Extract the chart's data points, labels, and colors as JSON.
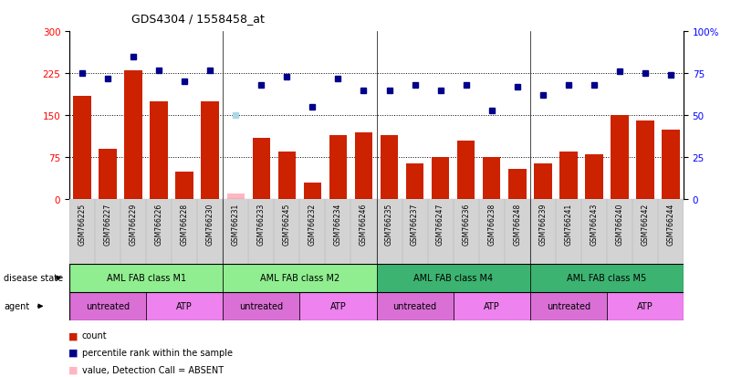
{
  "title": "GDS4304 / 1558458_at",
  "samples": [
    "GSM766225",
    "GSM766227",
    "GSM766229",
    "GSM766226",
    "GSM766228",
    "GSM766230",
    "GSM766231",
    "GSM766233",
    "GSM766245",
    "GSM766232",
    "GSM766234",
    "GSM766246",
    "GSM766235",
    "GSM766237",
    "GSM766247",
    "GSM766236",
    "GSM766238",
    "GSM766248",
    "GSM766239",
    "GSM766241",
    "GSM766243",
    "GSM766240",
    "GSM766242",
    "GSM766244"
  ],
  "count_values": [
    185,
    90,
    230,
    175,
    50,
    175,
    10,
    110,
    85,
    30,
    115,
    120,
    115,
    65,
    75,
    105,
    75,
    55,
    65,
    85,
    80,
    150,
    140,
    125
  ],
  "count_absent": [
    false,
    false,
    false,
    false,
    false,
    false,
    true,
    false,
    false,
    false,
    false,
    false,
    false,
    false,
    false,
    false,
    false,
    false,
    false,
    false,
    false,
    false,
    false,
    false
  ],
  "rank_values": [
    75,
    72,
    85,
    77,
    70,
    77,
    50,
    68,
    73,
    55,
    72,
    65,
    65,
    68,
    65,
    68,
    53,
    67,
    62,
    68,
    68,
    76,
    75,
    74
  ],
  "rank_absent": [
    false,
    false,
    false,
    false,
    false,
    false,
    true,
    false,
    false,
    false,
    false,
    false,
    false,
    false,
    false,
    false,
    false,
    false,
    false,
    false,
    false,
    false,
    false,
    false
  ],
  "disease_state_groups": [
    {
      "label": "AML FAB class M1",
      "start": 0,
      "end": 6,
      "color": "#90EE90"
    },
    {
      "label": "AML FAB class M2",
      "start": 6,
      "end": 12,
      "color": "#90EE90"
    },
    {
      "label": "AML FAB class M4",
      "start": 12,
      "end": 18,
      "color": "#3CB371"
    },
    {
      "label": "AML FAB class M5",
      "start": 18,
      "end": 24,
      "color": "#3CB371"
    }
  ],
  "agent_groups": [
    {
      "label": "untreated",
      "start": 0,
      "end": 3,
      "color": "#DA70D6"
    },
    {
      "label": "ATP",
      "start": 3,
      "end": 6,
      "color": "#EE82EE"
    },
    {
      "label": "untreated",
      "start": 6,
      "end": 9,
      "color": "#DA70D6"
    },
    {
      "label": "ATP",
      "start": 9,
      "end": 12,
      "color": "#EE82EE"
    },
    {
      "label": "untreated",
      "start": 12,
      "end": 15,
      "color": "#DA70D6"
    },
    {
      "label": "ATP",
      "start": 15,
      "end": 18,
      "color": "#EE82EE"
    },
    {
      "label": "untreated",
      "start": 18,
      "end": 21,
      "color": "#DA70D6"
    },
    {
      "label": "ATP",
      "start": 21,
      "end": 24,
      "color": "#EE82EE"
    }
  ],
  "bar_color_normal": "#CC2200",
  "bar_color_absent": "#FFB6C1",
  "dot_color_normal": "#00008B",
  "dot_color_absent": "#ADD8E6",
  "ylim_left": [
    0,
    300
  ],
  "ylim_right": [
    0,
    100
  ],
  "yticks_left": [
    0,
    75,
    150,
    225,
    300
  ],
  "yticks_right": [
    0,
    25,
    50,
    75,
    100
  ],
  "hlines": [
    75,
    150,
    225
  ],
  "xtick_bg": "#D3D3D3"
}
